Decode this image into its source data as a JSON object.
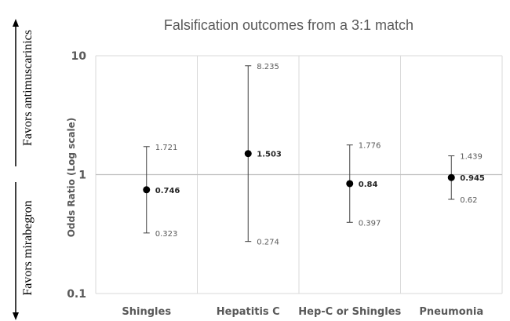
{
  "chart_data": {
    "type": "scatter",
    "title": "Falsification outcomes from a 3:1 match",
    "ylabel": "Odds Ratio (Log scale)",
    "xlabel": "",
    "yscale": "log",
    "ylim": [
      0.1,
      10
    ],
    "yticks": [
      "0.1",
      "1",
      "10"
    ],
    "grid": true,
    "categories": [
      "Shingles",
      "Hepatitis C",
      "Hep-C or Shingles",
      "Pneumonia"
    ],
    "estimates": [
      0.746,
      1.503,
      0.84,
      0.945
    ],
    "estimate_labels": [
      "0.746",
      "1.503",
      "0.84",
      "0.945"
    ],
    "upper": [
      1.721,
      8.235,
      1.776,
      1.439
    ],
    "upper_labels": [
      "1.721",
      "8.235",
      "1.776",
      "1.439"
    ],
    "lower": [
      0.323,
      0.274,
      0.397,
      0.62
    ],
    "lower_labels": [
      "0.323",
      "0.274",
      "0.397",
      "0.62"
    ],
    "annotations": {
      "favors_up": "Favors antimuscarinics",
      "favors_down": "Favors mirabegron"
    }
  }
}
